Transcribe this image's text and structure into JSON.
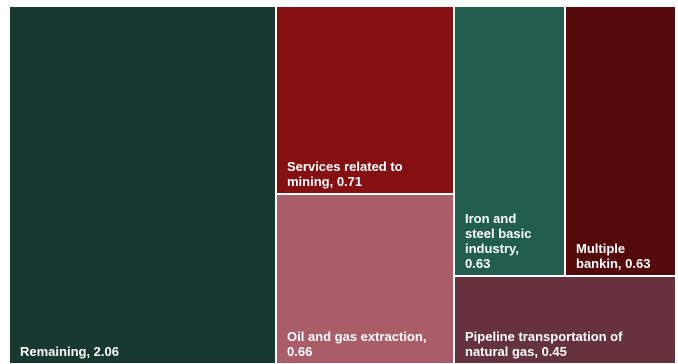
{
  "chart_data": {
    "type": "treemap",
    "items": [
      {
        "name": "Remaining",
        "value": 2.06,
        "label": "Remaining,  2.06",
        "color": "#17392f"
      },
      {
        "name": "Services related to mining",
        "value": 0.71,
        "label": "Services related to\nmining,  0.71",
        "color": "#861011"
      },
      {
        "name": "Oil and gas extraction",
        "value": 0.66,
        "label": "Oil and gas extraction,\n0.66",
        "color": "#a95d69"
      },
      {
        "name": "Iron and steel basic industry",
        "value": 0.63,
        "label": "Iron and\nsteel basic\nindustry,\n0.63",
        "color": "#225e50"
      },
      {
        "name": "Multiple bankin",
        "value": 0.63,
        "label": "Multiple\nbankin,  0.63",
        "color": "#540a0b"
      },
      {
        "name": "Pipeline transportation of natural gas",
        "value": 0.45,
        "label": "Pipeline transportation of\nnatural gas,  0.45",
        "color": "#65323e"
      }
    ]
  }
}
